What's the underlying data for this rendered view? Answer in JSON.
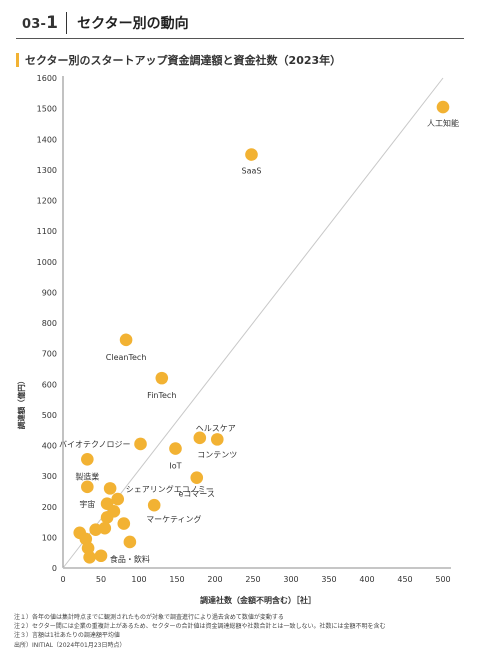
{
  "header": {
    "section_prefix": "03-",
    "section_number": "1",
    "title": "セクター別の動向"
  },
  "subtitle": "セクター別のスタートアップ資金調達額と資金社数（2023年）",
  "colors": {
    "accent": "#f2b233",
    "point": "#f2b233",
    "diagonal": "#c8c8c8"
  },
  "chart_data": {
    "type": "scatter",
    "title": "セクター別のスタートアップ資金調達額と資金社数（2023年）",
    "xlabel": "調達社数（金額不明含む）［社］",
    "ylabel": "調達額（億円）",
    "xlim": [
      0,
      500
    ],
    "ylim": [
      0,
      1600
    ],
    "xticks": [
      0,
      50,
      100,
      150,
      200,
      250,
      300,
      350,
      400,
      450,
      500
    ],
    "yticks": [
      0,
      100,
      200,
      300,
      400,
      500,
      600,
      700,
      800,
      900,
      1000,
      1100,
      1200,
      1300,
      1400,
      1500,
      1600
    ],
    "grid": false,
    "reference_line": {
      "from": [
        0,
        0
      ],
      "to": [
        500,
        1600
      ]
    },
    "points": [
      {
        "label": "人工知能",
        "x": 500,
        "y": 1505
      },
      {
        "label": "SaaS",
        "x": 248,
        "y": 1350
      },
      {
        "label": "CleanTech",
        "x": 83,
        "y": 745
      },
      {
        "label": "FinTech",
        "x": 130,
        "y": 620
      },
      {
        "label": "ヘルスケア",
        "x": 180,
        "y": 425
      },
      {
        "label": "コンテンツ",
        "x": 203,
        "y": 420
      },
      {
        "label": "バイオテクノロジー",
        "x": 102,
        "y": 405
      },
      {
        "label": "IoT",
        "x": 148,
        "y": 390
      },
      {
        "label": "製造業",
        "x": 32,
        "y": 355
      },
      {
        "label": "eコマース",
        "x": 176,
        "y": 295
      },
      {
        "label": "宇宙",
        "x": 32,
        "y": 265
      },
      {
        "label": "シェアリングエコノミー",
        "x": 72,
        "y": 225
      },
      {
        "label": "マーケティング",
        "x": 120,
        "y": 205
      },
      {
        "label": "食品・飲料",
        "x": 88,
        "y": 85
      },
      {
        "label": "",
        "x": 62,
        "y": 260
      },
      {
        "label": "",
        "x": 58,
        "y": 210
      },
      {
        "label": "",
        "x": 67,
        "y": 185
      },
      {
        "label": "",
        "x": 58,
        "y": 165
      },
      {
        "label": "",
        "x": 80,
        "y": 145
      },
      {
        "label": "",
        "x": 55,
        "y": 130
      },
      {
        "label": "",
        "x": 43,
        "y": 125
      },
      {
        "label": "",
        "x": 22,
        "y": 115
      },
      {
        "label": "",
        "x": 30,
        "y": 95
      },
      {
        "label": "",
        "x": 35,
        "y": 35
      },
      {
        "label": "",
        "x": 50,
        "y": 40
      },
      {
        "label": "",
        "x": 33,
        "y": 65
      }
    ]
  },
  "notes": [
    "注１）各年の値は集計時点までに観測されたものが対象で調査進行により過去含めて数値が変動する",
    "注２）セクター間には企業の重複計上があるため、セクターの合計値は資金調達総額や社数合計とは一致しない。社数には金額不明を含む",
    "注３）言額は1社あたりの調達額平均値",
    "出所）INITIAL（2024年01月23日時点）"
  ]
}
